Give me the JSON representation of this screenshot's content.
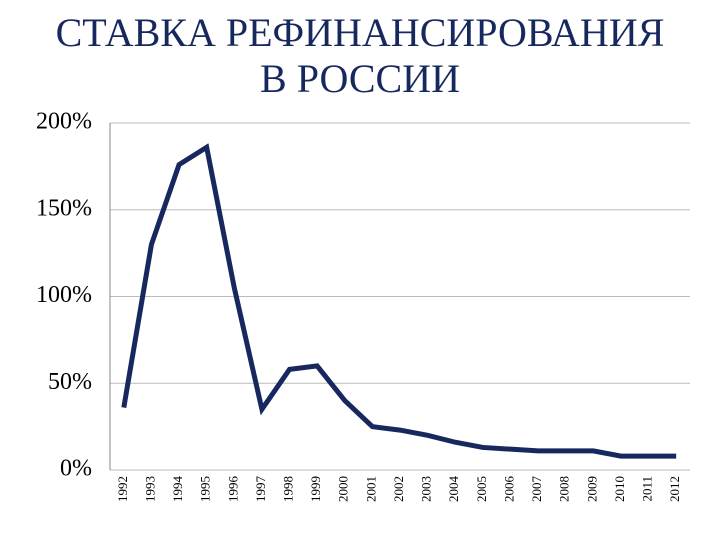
{
  "chart_data": {
    "type": "line",
    "title": [
      "СТАВКА РЕФИНАНСИРОВАНИЯ",
      "В РОССИИ"
    ],
    "categories": [
      "1992",
      "1993",
      "1994",
      "1995",
      "1996",
      "1997",
      "1998",
      "1999",
      "2000",
      "2001",
      "2002",
      "2003",
      "2004",
      "2005",
      "2006",
      "2007",
      "2008",
      "2009",
      "2010",
      "2011",
      "2012"
    ],
    "series": [
      {
        "color": "#17285e",
        "values": [
          36,
          130,
          176,
          186,
          105,
          35,
          58,
          60,
          40,
          25,
          23,
          20,
          16,
          13,
          12,
          11,
          11,
          11,
          8,
          8,
          8
        ]
      }
    ],
    "ylim": [
      0,
      200
    ],
    "yticks": [
      {
        "value": 0,
        "label": "0%"
      },
      {
        "value": 50,
        "label": "50%"
      },
      {
        "value": 100,
        "label": "100%"
      },
      {
        "value": 150,
        "label": "150%"
      },
      {
        "value": 200,
        "label": "200%"
      }
    ],
    "grid": true
  }
}
